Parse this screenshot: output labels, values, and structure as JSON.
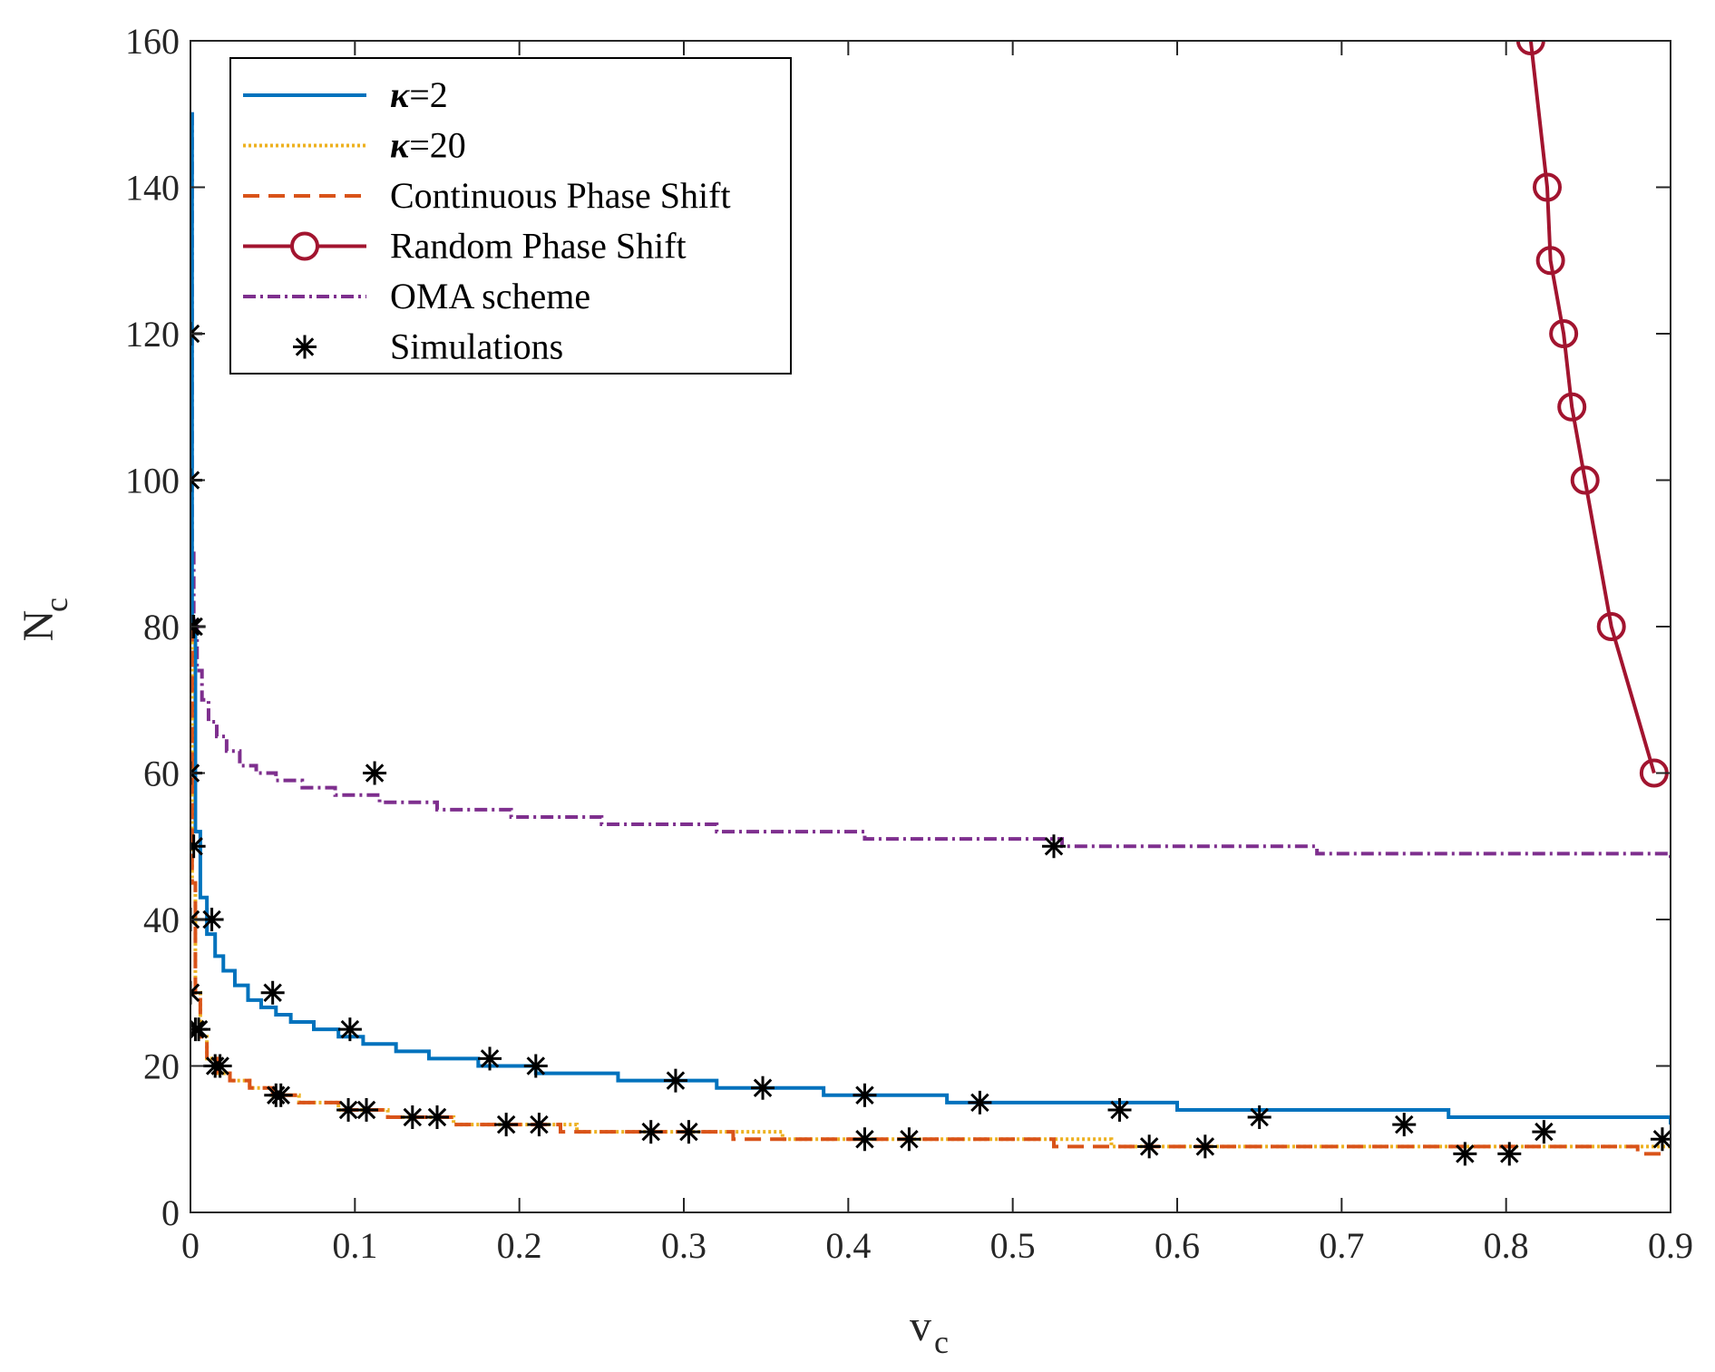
{
  "chart_data": {
    "type": "line",
    "title": "",
    "xlabel": {
      "main": "v",
      "sub": "c"
    },
    "ylabel": {
      "main": "N",
      "sub": "c"
    },
    "xlim": [
      0,
      0.9
    ],
    "ylim": [
      0,
      160
    ],
    "xticks": [
      0,
      0.1,
      0.2,
      0.3,
      0.4,
      0.5,
      0.6,
      0.7,
      0.8,
      0.9
    ],
    "xtick_labels": [
      "0",
      "0.1",
      "0.2",
      "0.3",
      "0.4",
      "0.5",
      "0.6",
      "0.7",
      "0.8",
      "0.9"
    ],
    "yticks": [
      0,
      20,
      40,
      60,
      80,
      100,
      120,
      140,
      160
    ],
    "ytick_labels": [
      "0",
      "20",
      "40",
      "60",
      "80",
      "100",
      "120",
      "140",
      "160"
    ],
    "grid": false,
    "legend_position": "top-left",
    "legend": [
      {
        "id": "kappa2",
        "prefix": "κ",
        "label": "=2",
        "style": "solid",
        "color": "#0072BD"
      },
      {
        "id": "kappa20",
        "prefix": "κ",
        "label": "=20",
        "style": "dotted",
        "color": "#EDB120"
      },
      {
        "id": "continuous",
        "prefix": "",
        "label": "Continuous Phase Shift",
        "style": "dashed",
        "color": "#D95319"
      },
      {
        "id": "random",
        "prefix": "",
        "label": "Random Phase Shift",
        "style": "solid-circle",
        "color": "#A2142F"
      },
      {
        "id": "oma",
        "prefix": "",
        "label": "OMA scheme",
        "style": "dashdot",
        "color": "#7E2F8E"
      },
      {
        "id": "sim",
        "prefix": "",
        "label": "Simulations",
        "style": "marker-star",
        "color": "#000000"
      }
    ],
    "series": [
      {
        "id": "kappa2",
        "name": "κ=2",
        "color": "#0072BD",
        "x": [
          0.0003,
          0.001,
          0.003,
          0.006,
          0.01,
          0.015,
          0.02,
          0.027,
          0.035,
          0.043,
          0.052,
          0.061,
          0.075,
          0.09,
          0.105,
          0.125,
          0.145,
          0.175,
          0.21,
          0.26,
          0.32,
          0.385,
          0.46,
          0.6,
          0.765,
          0.9
        ],
        "y": [
          150,
          80,
          52,
          43,
          38,
          35,
          33,
          31,
          29,
          28,
          27,
          26,
          25,
          24,
          23,
          22,
          21,
          20,
          19,
          18,
          17,
          16,
          15,
          14,
          13,
          12
        ]
      },
      {
        "id": "kappa20",
        "name": "κ=20",
        "color": "#EDB120",
        "x": [
          0.0002,
          0.001,
          0.003,
          0.006,
          0.01,
          0.016,
          0.024,
          0.036,
          0.05,
          0.066,
          0.09,
          0.12,
          0.16,
          0.235,
          0.36,
          0.56,
          0.9
        ],
        "y": [
          80,
          45,
          30,
          24,
          21,
          19,
          18,
          17,
          16,
          15,
          14,
          13,
          12,
          11,
          10,
          9,
          9
        ]
      },
      {
        "id": "continuous",
        "name": "Continuous Phase Shift",
        "color": "#D95319",
        "x": [
          0.0002,
          0.001,
          0.003,
          0.006,
          0.01,
          0.016,
          0.024,
          0.036,
          0.05,
          0.066,
          0.09,
          0.12,
          0.16,
          0.225,
          0.33,
          0.525,
          0.88,
          0.9
        ],
        "y": [
          80,
          45,
          30,
          24,
          21,
          19,
          18,
          17,
          16,
          15,
          14,
          13,
          12,
          11,
          10,
          9,
          8,
          8
        ]
      },
      {
        "id": "random",
        "name": "Random Phase Shift",
        "color": "#A2142F",
        "markers": true,
        "x": [
          0.815,
          0.825,
          0.827,
          0.835,
          0.84,
          0.848,
          0.864,
          0.89
        ],
        "y": [
          160,
          140,
          130,
          120,
          110,
          100,
          80,
          60
        ]
      },
      {
        "id": "oma",
        "name": "OMA scheme",
        "color": "#7E2F8E",
        "x": [
          0.0002,
          0.001,
          0.002,
          0.004,
          0.007,
          0.011,
          0.016,
          0.022,
          0.03,
          0.04,
          0.052,
          0.068,
          0.088,
          0.115,
          0.15,
          0.195,
          0.25,
          0.32,
          0.41,
          0.53,
          0.685,
          0.9
        ],
        "y": [
          150,
          90,
          80,
          74,
          70,
          67,
          65,
          63,
          61,
          60,
          59,
          58,
          57,
          56,
          55,
          54,
          53,
          52,
          51,
          50,
          49,
          48
        ]
      },
      {
        "id": "sim",
        "name": "Simulations",
        "color": "#000000",
        "scatter": true,
        "x": [
          0,
          0,
          0,
          0.002,
          0,
          0.002,
          0,
          0.013,
          0,
          0.003,
          0.005,
          0.015,
          0.018,
          0.05,
          0.052,
          0.055,
          0.097,
          0.096,
          0.107,
          0.135,
          0.15,
          0.112,
          0.182,
          0.192,
          0.21,
          0.212,
          0.28,
          0.295,
          0.303,
          0.348,
          0.41,
          0.41,
          0.437,
          0.48,
          0.525,
          0.565,
          0.583,
          0.617,
          0.65,
          0.738,
          0.775,
          0.802,
          0.823,
          0.895
        ],
        "y": [
          120,
          100,
          80,
          80,
          60,
          50,
          40,
          40,
          30,
          25,
          25,
          20,
          20,
          30,
          16,
          16,
          25,
          14,
          14,
          13,
          13,
          60,
          21,
          12,
          20,
          12,
          11,
          18,
          11,
          17,
          16,
          10,
          10,
          15,
          50,
          14,
          9,
          9,
          13,
          12,
          8,
          8,
          11,
          10
        ]
      }
    ]
  }
}
